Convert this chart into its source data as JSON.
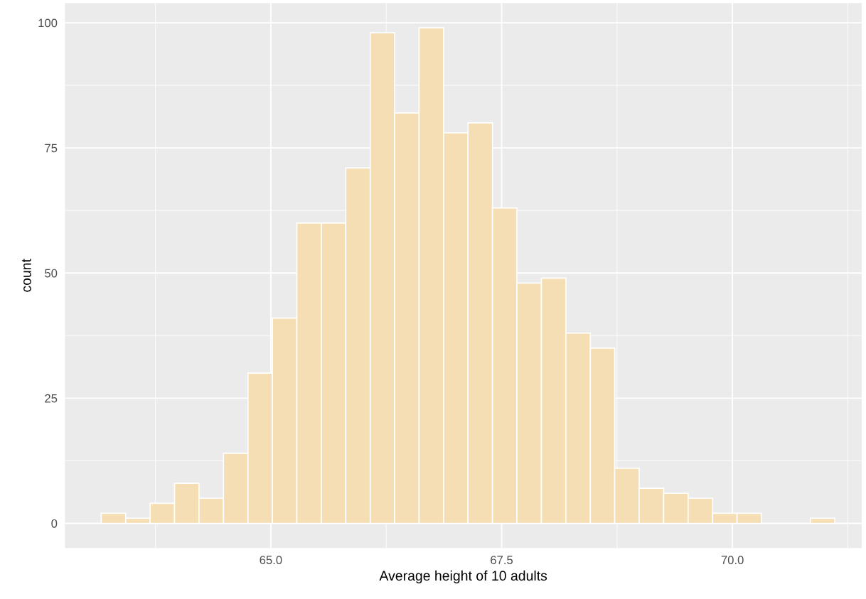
{
  "chart_data": {
    "type": "histogram",
    "xlabel": "Average height of 10 adults",
    "ylabel": "count",
    "bins": [
      63.163,
      63.428,
      63.693,
      63.957,
      64.222,
      64.487,
      64.752,
      65.017,
      65.282,
      65.547,
      65.812,
      66.077,
      66.341,
      66.606,
      66.871,
      67.136,
      67.401,
      67.666,
      67.931,
      68.196,
      68.461,
      68.725,
      68.99,
      69.255,
      69.52,
      69.785,
      70.05,
      70.315,
      70.58,
      70.844,
      71.109
    ],
    "values": [
      2,
      1,
      4,
      8,
      5,
      14,
      30,
      41,
      60,
      60,
      71,
      98,
      82,
      99,
      78,
      80,
      63,
      48,
      49,
      38,
      35,
      11,
      7,
      6,
      5,
      2,
      2,
      0,
      0,
      1
    ],
    "color": "#f5deb3",
    "xlim": [
      62.77,
      71.4
    ],
    "ylim": [
      -4.95,
      103.95
    ],
    "xticks": [
      {
        "value": 65,
        "label": "65.0"
      },
      {
        "value": 67.5,
        "label": "67.5"
      },
      {
        "value": 70,
        "label": "70.0"
      }
    ],
    "yticks": [
      0,
      25,
      50,
      75,
      100
    ],
    "grid": true,
    "legend": false
  }
}
